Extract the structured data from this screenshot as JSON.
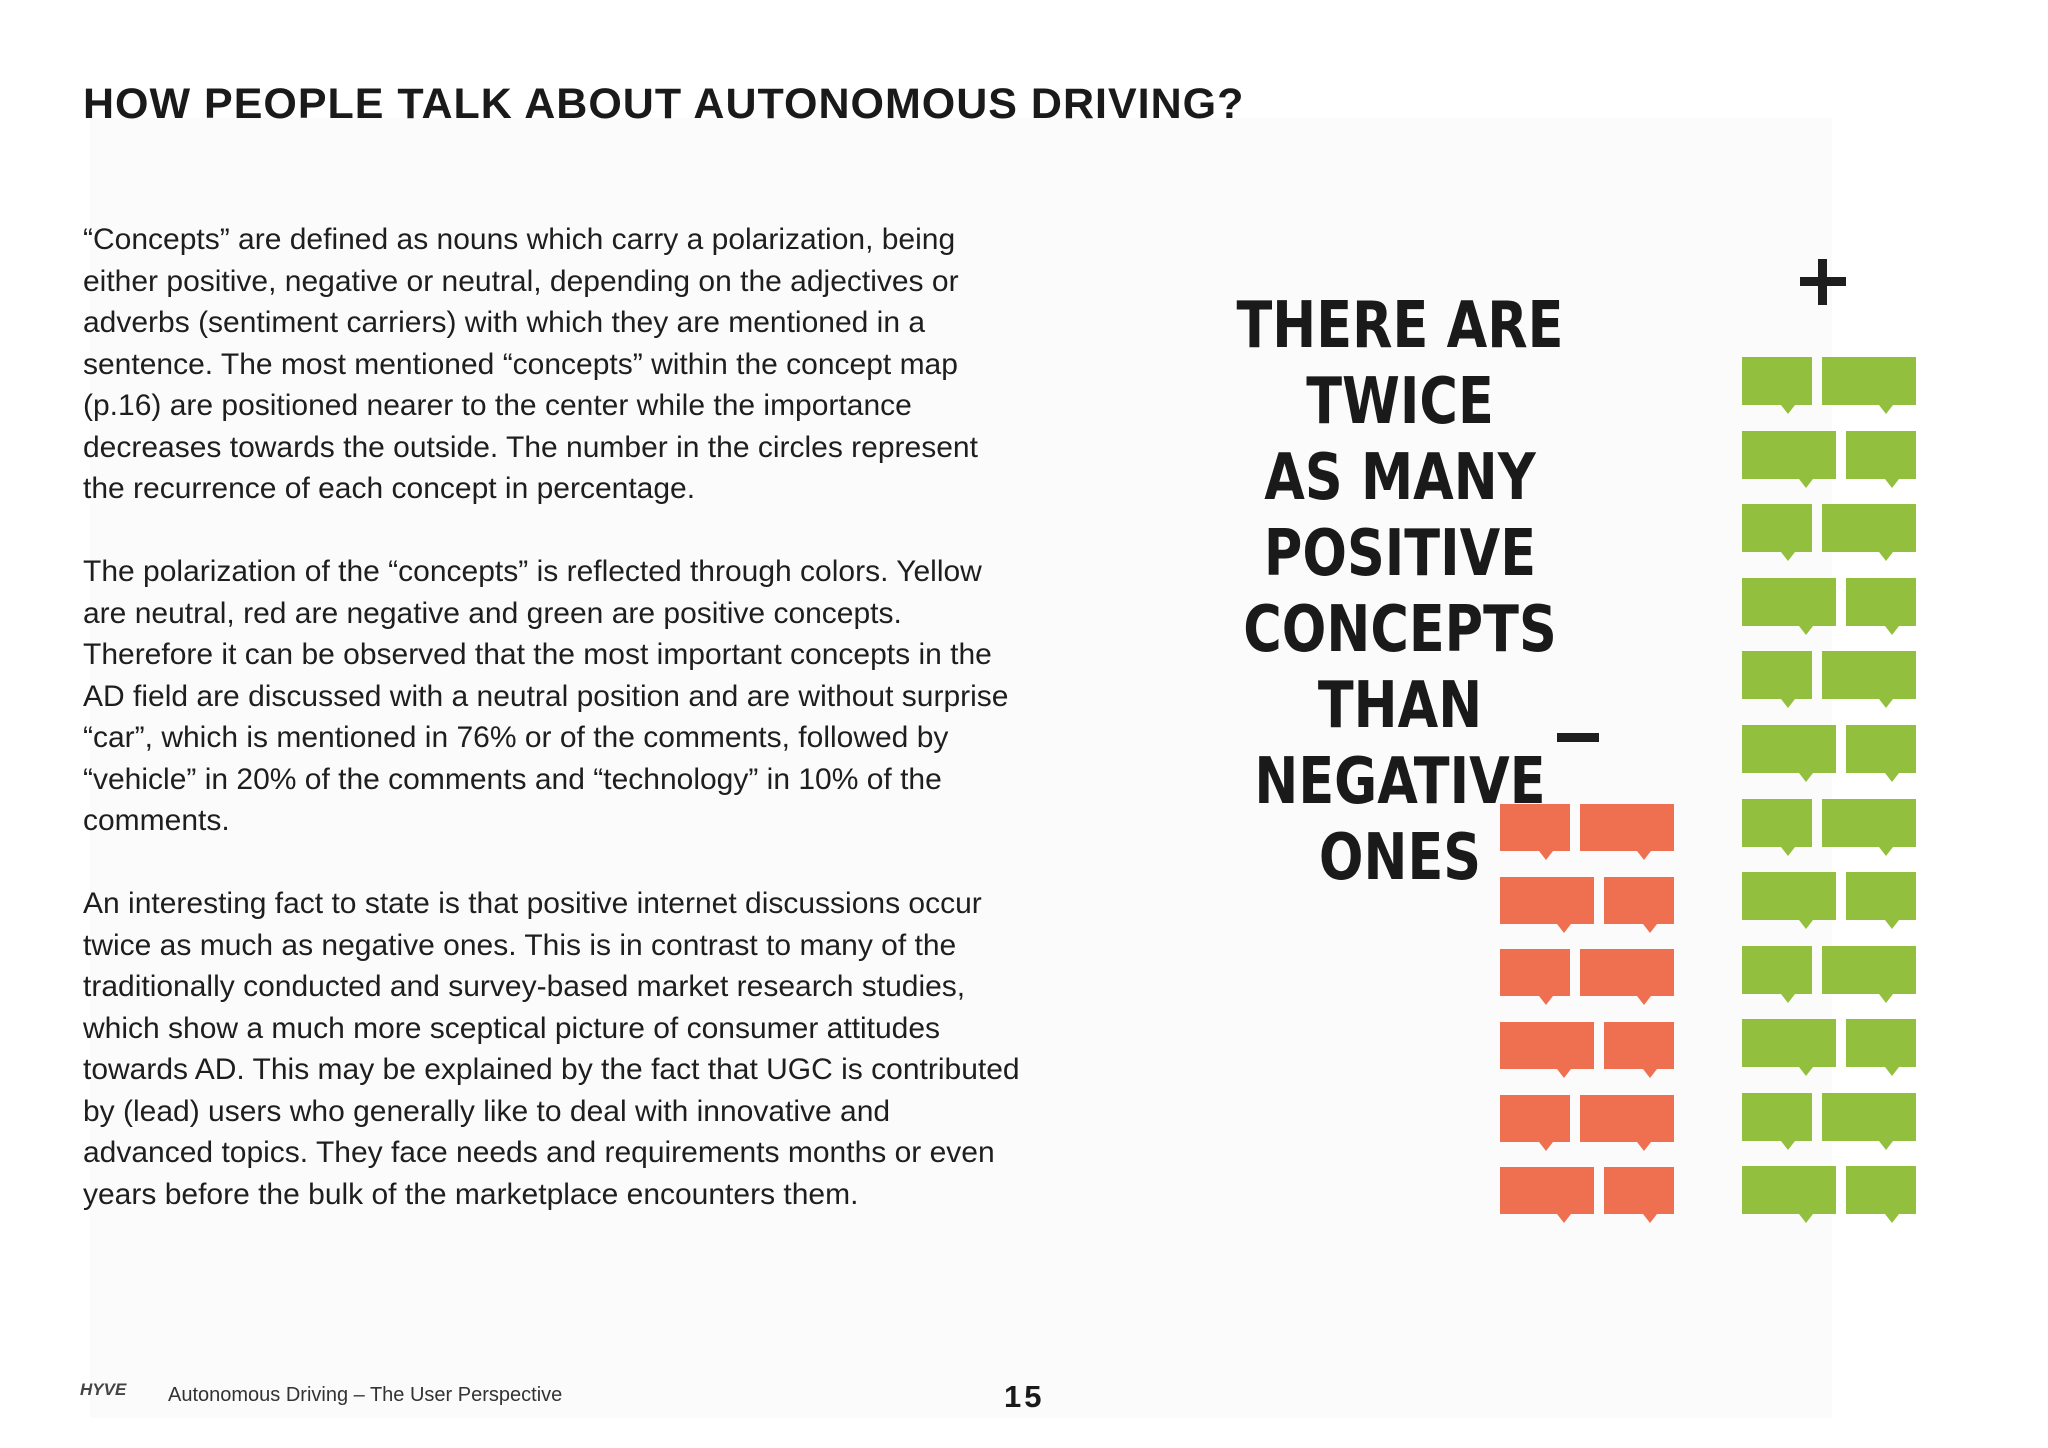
{
  "page": {
    "title": "HOW PEOPLE TALK ABOUT AUTONOMOUS DRIVING?",
    "paragraphs": [
      "“Concepts” are defined as nouns which carry a polarization, being either positive, negative or neutral, depending on the adjectives or adverbs (sentiment carriers) with which they are mentioned in a sentence. The most mentioned “concepts” within the concept map (p.16) are positioned nearer to the center while the importance decreases towards the outside. The number in the circles represent the recurrence of each concept in percentage.",
      "The polarization of the “concepts” is reflected through colors. Yellow are neutral, red are negative and green are positive concepts. Therefore it can be observed that the most important concepts in the AD field are discussed with a neutral position and are without surprise “car”, which is mentioned in 76% or of the comments, followed by “vehicle” in 20% of the comments and “technology” in 10% of the comments.",
      "An interesting fact to state is that positive internet discussions occur twice as much as negative ones. This is in contrast to many of the traditionally conducted and survey-based market research studies, which show a much more sceptical picture of consumer attitudes towards AD. This may be explained by the fact that UGC is contributed by (lead) users who generally like to deal with innovative and advanced topics. They face needs and requirements months or even years before the bulk of the marketplace encounters them."
    ]
  },
  "infographic": {
    "headline_lines": [
      "THERE ARE TWICE",
      "AS MANY POSITIVE",
      "CONCEPTS",
      "THAN NEGATIVE",
      "ONES"
    ],
    "negative_rows": 6,
    "positive_rows": 12,
    "negative_color": "#ef7050",
    "positive_color": "#93bf3e",
    "plus_icon": "plus-icon",
    "minus_icon": "minus-icon"
  },
  "footer": {
    "logo_text": "HYVE",
    "publication": "Autonomous Driving – The User Perspective",
    "page_number": "15"
  }
}
